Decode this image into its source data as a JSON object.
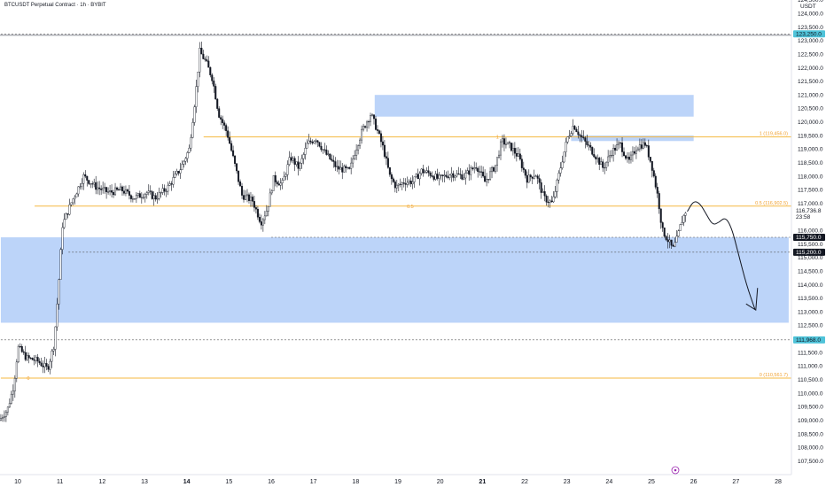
{
  "header": {
    "title": "BTCUSDT Perpetual Contract · 1h · BYBIT"
  },
  "axis": {
    "currency": "USDT"
  },
  "colors": {
    "candle_body": "#131722",
    "zone_fill": "#9fc2f7",
    "level_line": "#f5b942",
    "arrow": "#131722",
    "last_price_badge": "#131722",
    "high_badge": "#4fc3d9",
    "low_badge": "#4fc3d9"
  },
  "chart_data": {
    "type": "candlestick",
    "ylim": [
      107000,
      124500
    ],
    "y_ticks": [
      107500,
      108000,
      108500,
      109000,
      109500,
      110000,
      110500,
      111000,
      111500,
      112000,
      112500,
      113000,
      113500,
      114000,
      114500,
      115000,
      115500,
      116000,
      116500,
      117000,
      117500,
      118000,
      118500,
      119000,
      119500,
      120000,
      120500,
      121000,
      121500,
      122000,
      122500,
      123000,
      123500,
      124000,
      124500
    ],
    "x_ticks": [
      {
        "label": "10",
        "day": 10
      },
      {
        "label": "11",
        "day": 11
      },
      {
        "label": "12",
        "day": 12
      },
      {
        "label": "13",
        "day": 13
      },
      {
        "label": "14",
        "day": 14,
        "bold": true
      },
      {
        "label": "15",
        "day": 15
      },
      {
        "label": "16",
        "day": 16
      },
      {
        "label": "17",
        "day": 17
      },
      {
        "label": "18",
        "day": 18
      },
      {
        "label": "19",
        "day": 19
      },
      {
        "label": "20",
        "day": 20
      },
      {
        "label": "21",
        "day": 21,
        "bold": true
      },
      {
        "label": "22",
        "day": 22
      },
      {
        "label": "23",
        "day": 23
      },
      {
        "label": "24",
        "day": 24
      },
      {
        "label": "25",
        "day": 25
      },
      {
        "label": "26",
        "day": 26
      },
      {
        "label": "27",
        "day": 27
      },
      {
        "label": "28",
        "day": 28
      }
    ],
    "xlim_days": [
      9.6,
      28.25
    ],
    "path_points": [
      [
        9.6,
        109000
      ],
      [
        9.8,
        109400
      ],
      [
        9.95,
        110300
      ],
      [
        10.05,
        111700
      ],
      [
        10.25,
        111300
      ],
      [
        10.5,
        111200
      ],
      [
        10.75,
        110900
      ],
      [
        10.9,
        111800
      ],
      [
        11.0,
        113800
      ],
      [
        11.1,
        116200
      ],
      [
        11.3,
        117000
      ],
      [
        11.6,
        118000
      ],
      [
        11.9,
        117600
      ],
      [
        12.2,
        117400
      ],
      [
        12.5,
        117500
      ],
      [
        12.8,
        117200
      ],
      [
        13.1,
        117400
      ],
      [
        13.3,
        117200
      ],
      [
        13.6,
        117600
      ],
      [
        13.9,
        118300
      ],
      [
        14.1,
        119000
      ],
      [
        14.25,
        121000
      ],
      [
        14.35,
        122600
      ],
      [
        14.5,
        122200
      ],
      [
        14.65,
        121600
      ],
      [
        14.8,
        120300
      ],
      [
        15.0,
        119600
      ],
      [
        15.2,
        118300
      ],
      [
        15.35,
        117300
      ],
      [
        15.6,
        117100
      ],
      [
        15.8,
        116300
      ],
      [
        15.95,
        116800
      ],
      [
        16.1,
        117900
      ],
      [
        16.3,
        117700
      ],
      [
        16.5,
        118700
      ],
      [
        16.7,
        118300
      ],
      [
        16.9,
        119200
      ],
      [
        17.1,
        119400
      ],
      [
        17.3,
        118900
      ],
      [
        17.6,
        118300
      ],
      [
        17.9,
        118200
      ],
      [
        18.0,
        118800
      ],
      [
        18.2,
        119700
      ],
      [
        18.4,
        120300
      ],
      [
        18.55,
        119700
      ],
      [
        18.7,
        119000
      ],
      [
        18.85,
        118000
      ],
      [
        19.0,
        117600
      ],
      [
        19.2,
        117800
      ],
      [
        19.4,
        117800
      ],
      [
        19.6,
        118200
      ],
      [
        19.8,
        118100
      ],
      [
        20.0,
        117900
      ],
      [
        20.3,
        118100
      ],
      [
        20.6,
        118000
      ],
      [
        20.9,
        118400
      ],
      [
        21.1,
        117800
      ],
      [
        21.35,
        118400
      ],
      [
        21.5,
        119300
      ],
      [
        21.7,
        119100
      ],
      [
        21.9,
        118700
      ],
      [
        22.1,
        117900
      ],
      [
        22.3,
        118100
      ],
      [
        22.5,
        117200
      ],
      [
        22.7,
        117000
      ],
      [
        22.9,
        118400
      ],
      [
        23.05,
        119400
      ],
      [
        23.2,
        119900
      ],
      [
        23.35,
        119500
      ],
      [
        23.5,
        119200
      ],
      [
        23.7,
        118800
      ],
      [
        23.9,
        118300
      ],
      [
        24.1,
        118900
      ],
      [
        24.3,
        119200
      ],
      [
        24.5,
        118500
      ],
      [
        24.7,
        119100
      ],
      [
        24.9,
        119200
      ],
      [
        25.05,
        118400
      ],
      [
        25.2,
        117200
      ],
      [
        25.3,
        116000
      ],
      [
        25.45,
        115600
      ],
      [
        25.55,
        115300
      ],
      [
        25.65,
        115700
      ],
      [
        25.75,
        116300
      ],
      [
        25.85,
        116700
      ]
    ],
    "zones": [
      {
        "name": "demand-zone-large",
        "x_from": 9.6,
        "x_to": 28.25,
        "y_from": 112600,
        "y_to": 115750
      },
      {
        "name": "supply-zone-upper",
        "x_from": 18.45,
        "x_to": 26.0,
        "y_from": 120200,
        "y_to": 121000
      },
      {
        "name": "supply-zone-lower",
        "x_from": 23.1,
        "x_to": 26.0,
        "y_from": 119300,
        "y_to": 119500
      }
    ],
    "levels": [
      {
        "name": "fib-1",
        "value": 119450,
        "x_from": 14.4,
        "x_to": 28.25,
        "label": "1 (119,456.0)",
        "mid_label": "1"
      },
      {
        "name": "fib-0_5",
        "value": 116900,
        "x_from": 10.4,
        "x_to": 28.25,
        "label": "0.5 (116,902.5)",
        "mid_label": "0.5"
      },
      {
        "name": "fib-0",
        "value": 110560,
        "x_from": 9.6,
        "x_to": 28.25,
        "label": "0 (110,561.7)",
        "mid_label": "0"
      }
    ],
    "dashed_levels": [
      {
        "name": "dash-high",
        "value": 123250,
        "x_from": 9.6
      },
      {
        "name": "dash-low",
        "value": 111968,
        "x_from": 9.6
      },
      {
        "name": "dash-115750",
        "value": 115750,
        "x_from": 16.0
      },
      {
        "name": "dash-115200",
        "value": 115200,
        "x_from": 11.2
      }
    ],
    "projection": [
      [
        25.85,
        116700
      ],
      [
        26.0,
        117100
      ],
      [
        26.15,
        117000
      ],
      [
        26.3,
        116600
      ],
      [
        26.45,
        116200
      ],
      [
        26.6,
        116300
      ],
      [
        26.75,
        116500
      ],
      [
        26.9,
        116100
      ],
      [
        27.05,
        115200
      ],
      [
        27.25,
        114000
      ],
      [
        27.45,
        113100
      ]
    ],
    "badges": [
      {
        "name": "high-price-badge",
        "value": 123250,
        "label": "123,250.0",
        "style": "cyan"
      },
      {
        "name": "current-price-badge",
        "value": 116736.8,
        "label": "116,736.8",
        "style": "plain",
        "sub": "23:58"
      },
      {
        "name": "level-115750-badge",
        "value": 115750,
        "label": "115,750.0",
        "style": "dark"
      },
      {
        "name": "level-115200-badge",
        "value": 115200,
        "label": "115,200.0",
        "style": "dark"
      },
      {
        "name": "low-price-badge",
        "value": 111968,
        "label": "111,968.0",
        "style": "cyan"
      }
    ]
  }
}
